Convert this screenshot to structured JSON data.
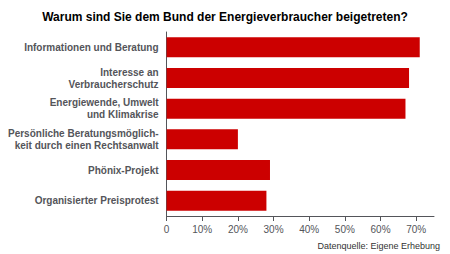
{
  "chart_data": {
    "type": "bar",
    "orientation": "horizontal",
    "title": "Warum sind Sie dem Bund der Energieverbraucher beigetreten?",
    "categories": [
      "Organisierter Preisprotest",
      "Phönix-Projekt",
      "Persönliche Beratungsmöglich-\nkeit durch einen Rechtsanwalt",
      "Energiewende, Umwelt\nund Klimakrise",
      "Interesse an\nVerbraucherschutz",
      "Informationen und Beratung"
    ],
    "values": [
      28,
      29,
      20,
      67,
      68,
      71
    ],
    "color": "#cc0000",
    "xlim": [
      0,
      75
    ],
    "xticks": [
      0,
      {
        "value": 10,
        "label": "10%"
      },
      {
        "value": 20,
        "label": "20%"
      },
      {
        "value": 30,
        "label": "30%"
      },
      {
        "value": 40,
        "label": "40%"
      },
      {
        "value": 50,
        "label": "50%"
      },
      {
        "value": 60,
        "label": "60%"
      },
      {
        "value": 70,
        "label": "70%"
      }
    ],
    "grid": false,
    "annotations": [
      "Datenquelle: Eigene Erhebung"
    ]
  }
}
